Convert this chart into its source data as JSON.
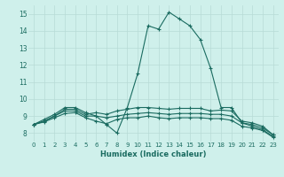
{
  "xlabel": "Humidex (Indice chaleur)",
  "bg_color": "#cff0eb",
  "grid_color": "#b8dbd6",
  "line_color": "#1a6b60",
  "xlim": [
    -0.5,
    23.5
  ],
  "ylim": [
    7.5,
    15.5
  ],
  "xticks": [
    0,
    1,
    2,
    3,
    4,
    5,
    6,
    7,
    8,
    9,
    10,
    11,
    12,
    13,
    14,
    15,
    16,
    17,
    18,
    19,
    20,
    21,
    22,
    23
  ],
  "yticks": [
    8,
    9,
    10,
    11,
    12,
    13,
    14,
    15
  ],
  "series": [
    [
      8.5,
      8.8,
      9.1,
      9.5,
      9.5,
      9.2,
      9.0,
      8.5,
      8.0,
      9.5,
      11.5,
      14.3,
      14.1,
      15.1,
      14.7,
      14.3,
      13.5,
      11.8,
      9.5,
      9.5,
      8.6,
      8.4,
      8.2,
      7.8
    ],
    [
      8.5,
      8.7,
      9.0,
      9.4,
      9.4,
      9.1,
      9.2,
      9.1,
      9.3,
      9.4,
      9.5,
      9.5,
      9.45,
      9.4,
      9.45,
      9.45,
      9.45,
      9.3,
      9.35,
      9.3,
      8.7,
      8.6,
      8.4,
      7.9
    ],
    [
      8.5,
      8.7,
      9.0,
      9.3,
      9.3,
      9.0,
      9.0,
      8.9,
      9.0,
      9.1,
      9.15,
      9.2,
      9.15,
      9.1,
      9.15,
      9.15,
      9.15,
      9.1,
      9.1,
      9.0,
      8.6,
      8.5,
      8.3,
      7.9
    ],
    [
      8.5,
      8.65,
      8.9,
      9.15,
      9.2,
      8.9,
      8.7,
      8.55,
      8.8,
      8.9,
      8.9,
      9.0,
      8.9,
      8.85,
      8.9,
      8.9,
      8.9,
      8.85,
      8.85,
      8.75,
      8.4,
      8.3,
      8.15,
      7.75
    ]
  ]
}
